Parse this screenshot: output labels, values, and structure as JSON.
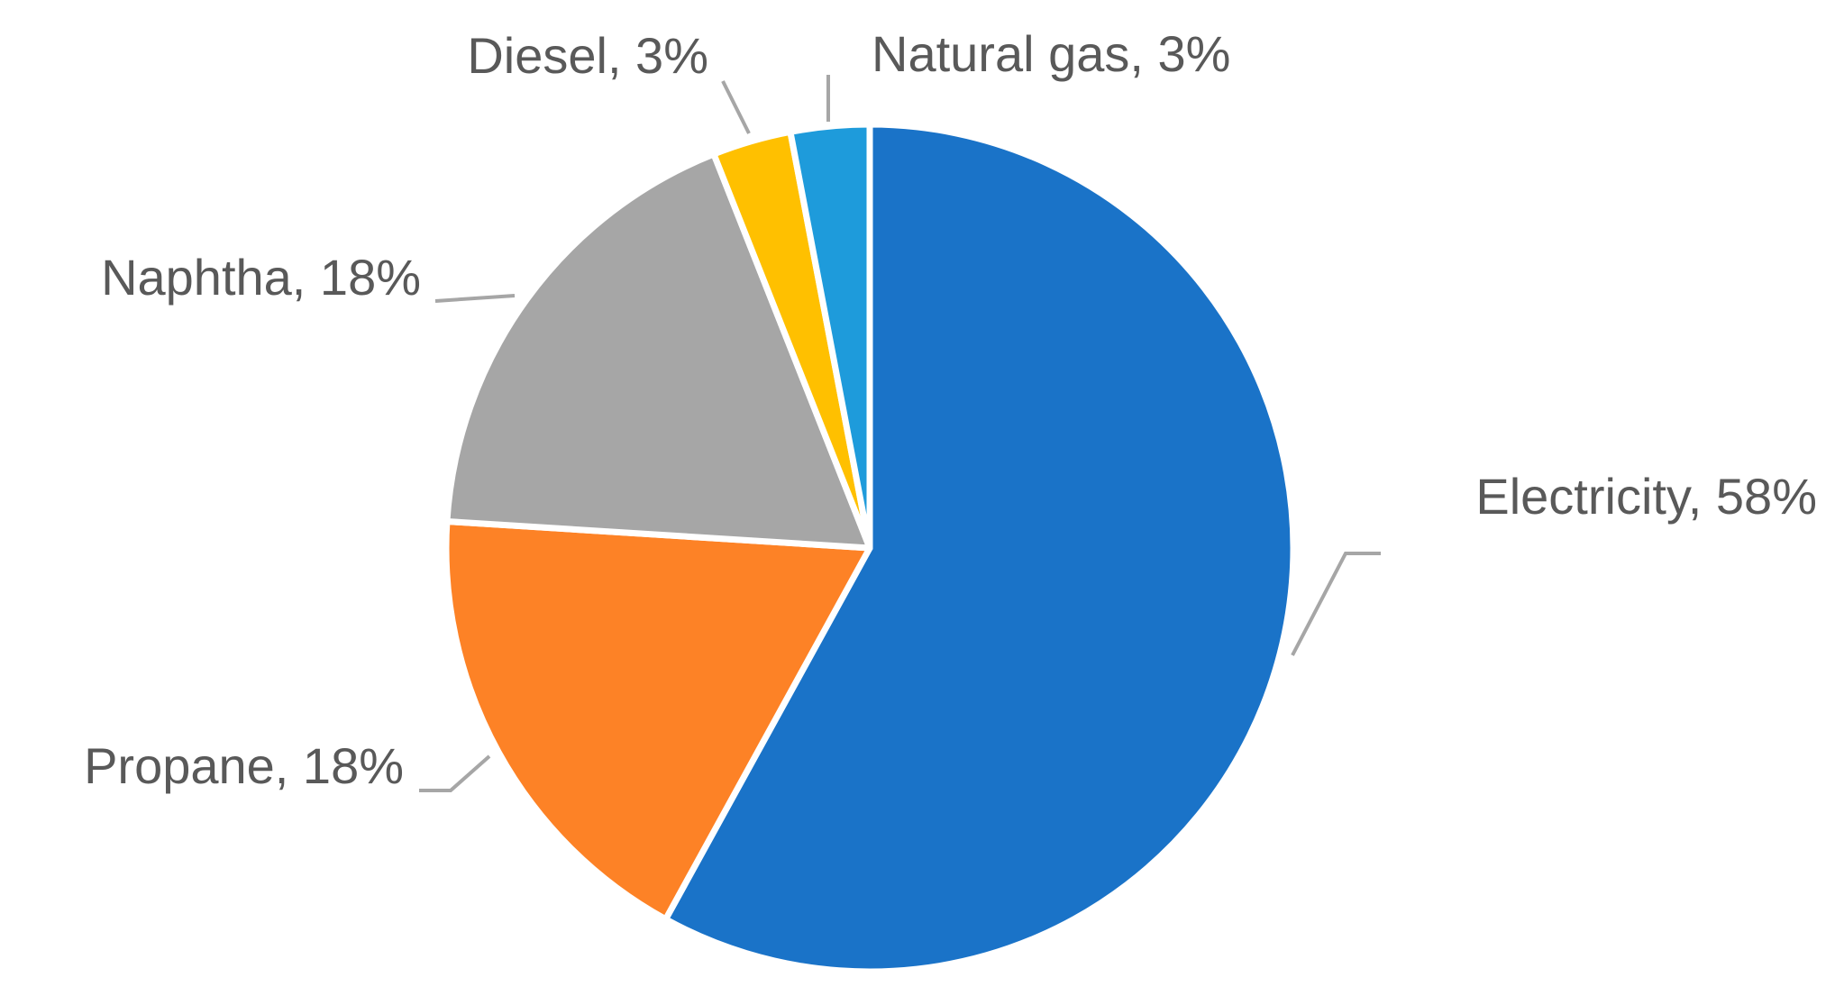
{
  "chart_data": {
    "type": "pie",
    "values": [
      58,
      18,
      18,
      3,
      3
    ],
    "value_labels": [
      "Electricity, 58%",
      "Propane, 18%",
      "Naphtha, 18%",
      "Diesel, 3%",
      "Natural gas, 3%"
    ],
    "colors": [
      "#1a73c8",
      "#fd8226",
      "#a6a6a6",
      "#ffc000",
      "#1e9bdb"
    ],
    "start_angle": 0,
    "direction": "clockwise"
  }
}
